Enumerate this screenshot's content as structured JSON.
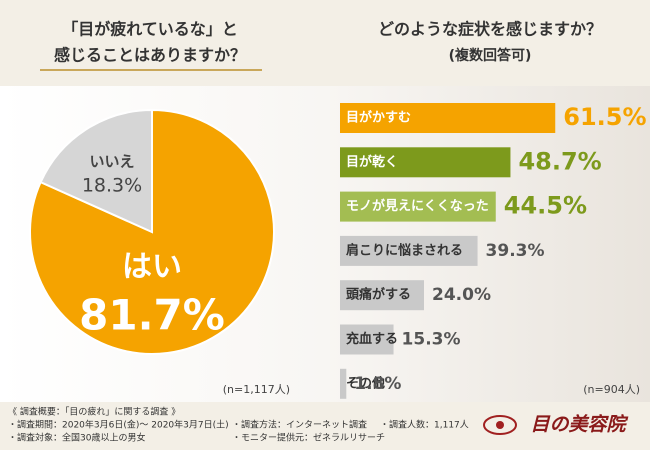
{
  "chart_data": [
    {
      "type": "pie",
      "title": [
        "「目が疲れているな」と",
        "感じることはありますか？"
      ],
      "categories": [
        "はい",
        "いいえ"
      ],
      "values": [
        81.7,
        18.3
      ],
      "value_labels": [
        "81.7%",
        "18.3%"
      ],
      "colors": [
        "#f5a300",
        "#d6d6d6"
      ],
      "annotation": "(n=1,117人)"
    },
    {
      "type": "bar",
      "title": [
        "どのような症状を感じますか？",
        "(複数回答可)"
      ],
      "categories": [
        "目がかすむ",
        "目が乾く",
        "モノが見えにくくなった",
        "肩こりに悩まされる",
        "頭痛がする",
        "充血する",
        "その他"
      ],
      "values": [
        61.5,
        48.7,
        44.5,
        39.3,
        24.0,
        15.3,
        1.8
      ],
      "value_labels": [
        "61.5%",
        "48.7%",
        "44.5%",
        "39.3%",
        "24.0%",
        "15.3%",
        "1.8%"
      ],
      "colors": [
        "#f5a300",
        "#7d9a1c",
        "#a3bd52",
        "#c9c9c9",
        "#c9c9c9",
        "#c9c9c9",
        "#c9c9c9"
      ],
      "text_colors": [
        "#ffffff",
        "#ffffff",
        "#ffffff",
        "#333333",
        "#333333",
        "#333333",
        "#333333"
      ],
      "label_colors": [
        "#f5a300",
        "#7d9a1c",
        "#7d9a1c",
        "#555555",
        "#555555",
        "#555555",
        "#555555"
      ],
      "xlim": [
        0,
        100
      ],
      "annotation": "(n=904人)"
    }
  ],
  "footer": {
    "heading": "《 調査概要：「目の疲れ」に関する調査 》",
    "items": [
      "・調査期間：2020年3月6日(金)～ 2020年3月7日(土)",
      "・調査方法：インターネット調査",
      "・調査人数：1,117人",
      "・調査対象：全国30歳以上の男女",
      "・モニター提供元：ゼネラルリサーチ"
    ],
    "logo": "目の美容院"
  }
}
